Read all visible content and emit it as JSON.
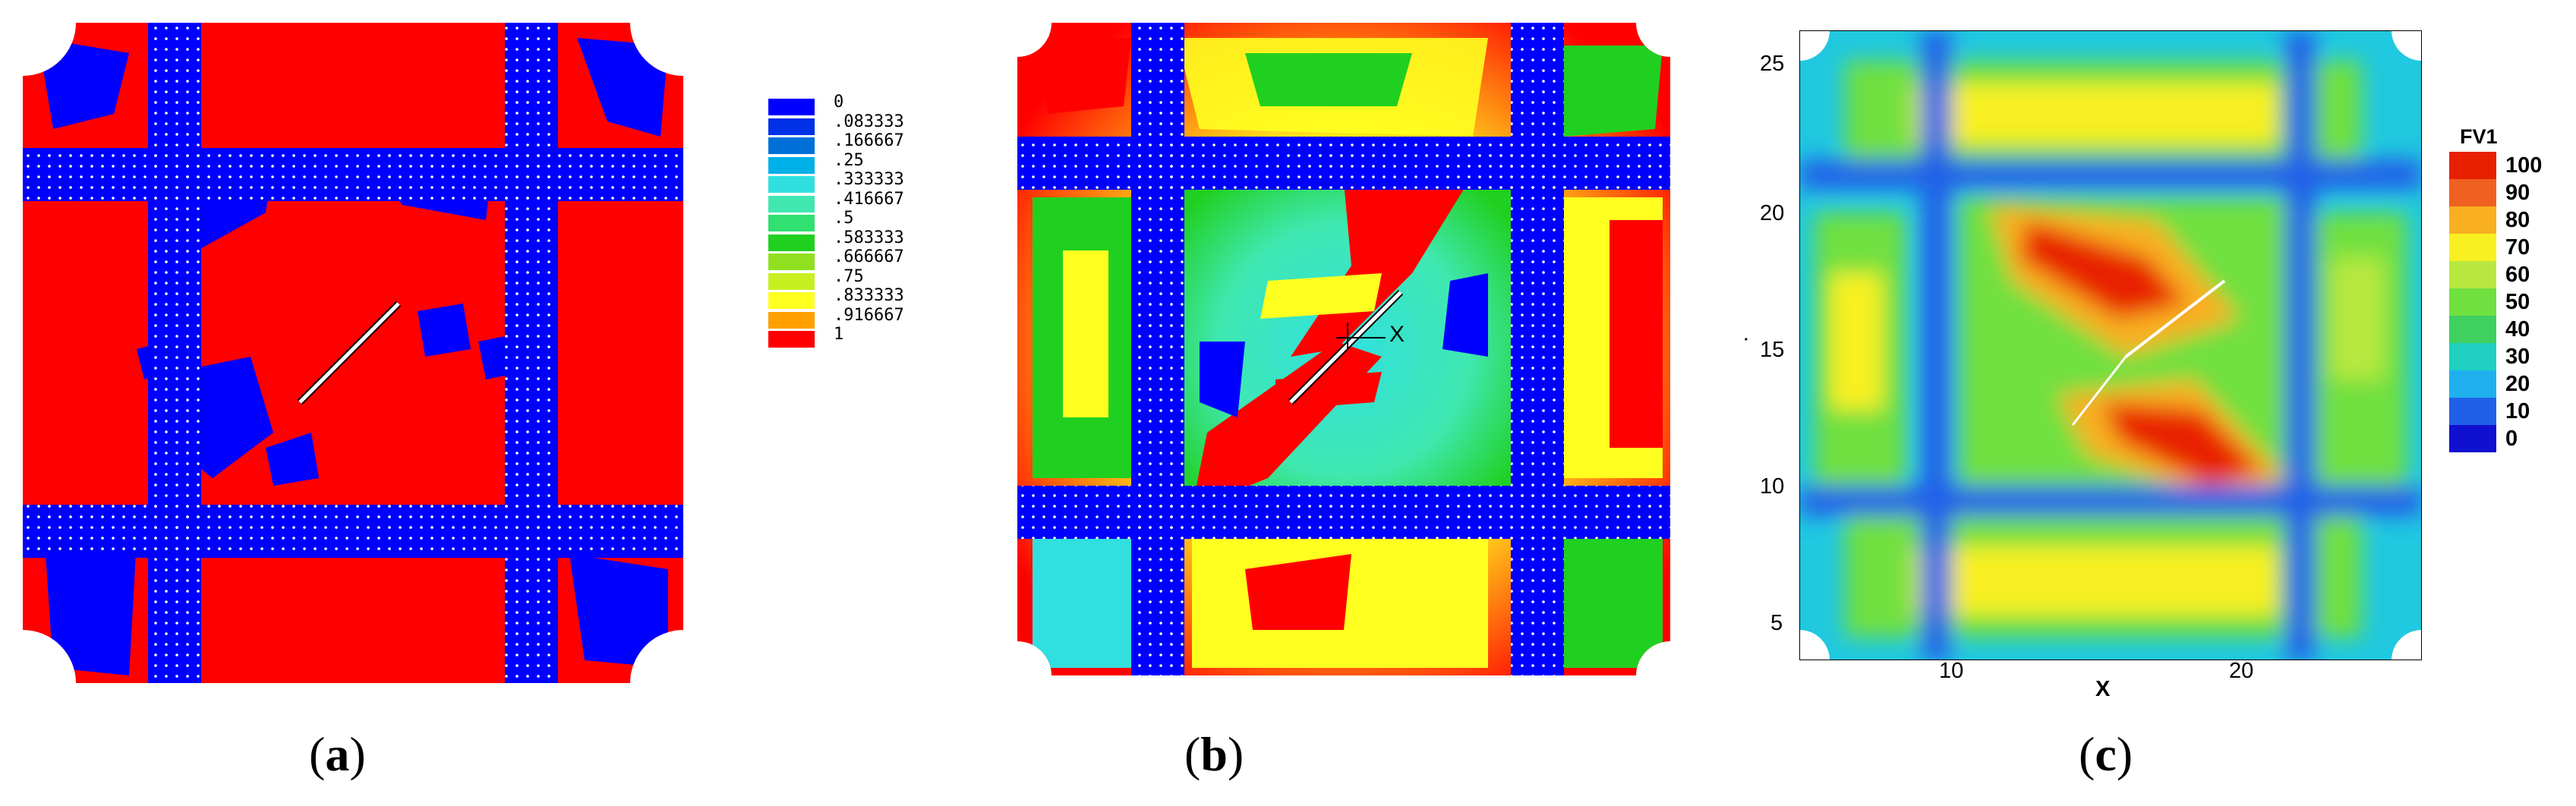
{
  "captions": {
    "a_open": "(",
    "a_letter": "a",
    "a_close": ")",
    "b_open": "(",
    "b_letter": "b",
    "b_close": ")",
    "c_open": "(",
    "c_letter": "c",
    "c_close": ")"
  },
  "legend_a": {
    "entries": [
      {
        "label": "0",
        "color": "#0000ff"
      },
      {
        "label": ".083333",
        "color": "#0030e8"
      },
      {
        "label": ".166667",
        "color": "#0070d8"
      },
      {
        "label": ".25",
        "color": "#00b0e8"
      },
      {
        "label": ".333333",
        "color": "#30e0e0"
      },
      {
        "label": ".416667",
        "color": "#40e8b0"
      },
      {
        "label": ".5",
        "color": "#30e070"
      },
      {
        "label": ".583333",
        "color": "#20d020"
      },
      {
        "label": ".666667",
        "color": "#90e020"
      },
      {
        "label": ".75",
        "color": "#c8f020"
      },
      {
        "label": ".833333",
        "color": "#ffff20"
      },
      {
        "label": ".916667",
        "color": "#ffa000"
      },
      {
        "label": "1",
        "color": "#ff0000"
      }
    ]
  },
  "panel_b": {
    "marker_label": "X"
  },
  "panel_c": {
    "colorbar_title": "FV1",
    "colorbar": [
      {
        "label": "100",
        "color": "#e82000"
      },
      {
        "label": "90",
        "color": "#f06020"
      },
      {
        "label": "80",
        "color": "#f8b020"
      },
      {
        "label": "70",
        "color": "#f8f020"
      },
      {
        "label": "60",
        "color": "#b8e840"
      },
      {
        "label": "50",
        "color": "#70e040"
      },
      {
        "label": "40",
        "color": "#40d060"
      },
      {
        "label": "30",
        "color": "#20d0c0"
      },
      {
        "label": "20",
        "color": "#20b0f0"
      },
      {
        "label": "10",
        "color": "#2060e8"
      },
      {
        "label": "0",
        "color": "#1010d0"
      }
    ],
    "y_ticks": [
      "25",
      "20",
      "15",
      "10",
      "5"
    ],
    "x_ticks": [
      "10",
      "20"
    ],
    "x_label": "X",
    "y_label": "·"
  }
}
